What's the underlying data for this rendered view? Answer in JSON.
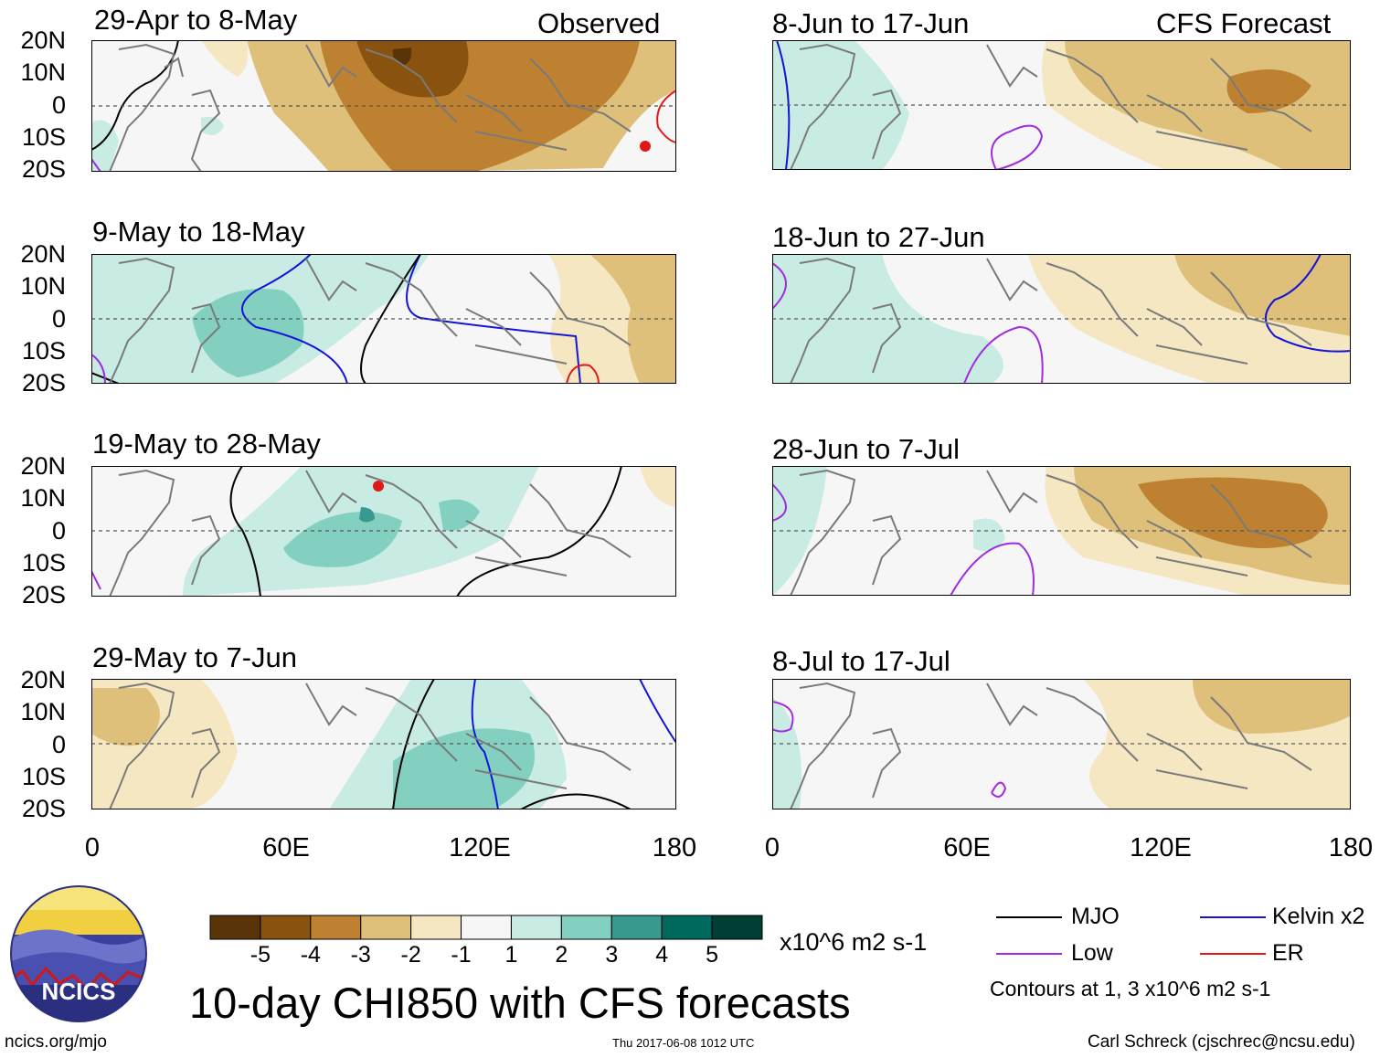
{
  "panels": [
    {
      "title": "29-Apr to 8-May",
      "tag": "Observed"
    },
    {
      "title": "9-May to 18-May",
      "tag": ""
    },
    {
      "title": "19-May to 28-May",
      "tag": ""
    },
    {
      "title": "29-May to 7-Jun",
      "tag": ""
    },
    {
      "title": "8-Jun to 17-Jun",
      "tag": "CFS Forecast"
    },
    {
      "title": "18-Jun to 27-Jun",
      "tag": ""
    },
    {
      "title": "28-Jun to 7-Jul",
      "tag": ""
    },
    {
      "title": "8-Jul to 17-Jul",
      "tag": ""
    }
  ],
  "lat_labels": [
    "20N",
    "10N",
    "0",
    "10S",
    "20S"
  ],
  "lon_labels": [
    "0",
    "60E",
    "120E",
    "180"
  ],
  "colorbar": {
    "colors": [
      "#5a3409",
      "#8a520f",
      "#bd8131",
      "#dfc07a",
      "#f5e7c2",
      "#f6f6f6",
      "#c8ebe3",
      "#83d0c1",
      "#389a8f",
      "#00695f",
      "#003d32"
    ],
    "labels": [
      "-5",
      "-4",
      "-3",
      "-2",
      "-1",
      "1",
      "2",
      "3",
      "4",
      "5"
    ],
    "units": "x10^6 m2 s-1"
  },
  "legend": {
    "items": [
      {
        "label": "MJO",
        "color": "#000000"
      },
      {
        "label": "Kelvin x2",
        "color": "#1414d8"
      },
      {
        "label": "Low",
        "color": "#a02be0"
      },
      {
        "label": "ER",
        "color": "#e01818"
      }
    ],
    "note": "Contours at 1, 3 x10^6 m2 s-1"
  },
  "main_title": "10-day CHI850 with CFS forecasts",
  "logo_text": "NCICS",
  "footer": {
    "url": "ncics.org/mjo",
    "timestamp": "Thu 2017-06-08 1012 UTC",
    "credit": "Carl Schreck (cjschrec@ncsu.edu)"
  }
}
